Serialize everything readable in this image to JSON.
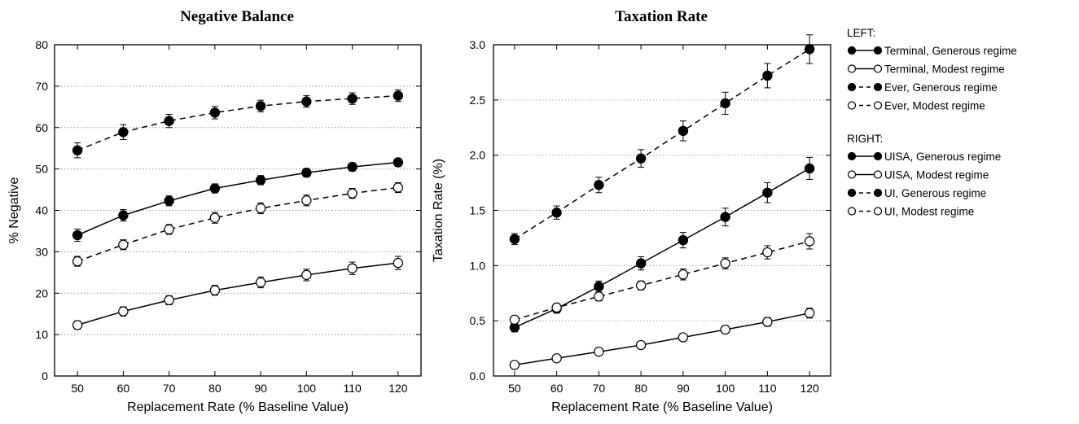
{
  "chart_data": [
    {
      "type": "line",
      "title": "Negative Balance",
      "xlabel": "Replacement Rate (% Baseline Value)",
      "ylabel": "% Negative",
      "x": [
        50,
        60,
        70,
        80,
        90,
        100,
        110,
        120
      ],
      "xlim": [
        45,
        125
      ],
      "ylim": [
        0,
        80
      ],
      "yticks": [
        0,
        10,
        20,
        30,
        40,
        50,
        60,
        70,
        80
      ],
      "ytick_labels": [
        "0",
        "10",
        "20",
        "30",
        "40",
        "50",
        "60",
        "70",
        "80"
      ],
      "xtick_labels": [
        "50",
        "60",
        "70",
        "80",
        "90",
        "100",
        "110",
        "120"
      ],
      "grid": "horizontal dotted",
      "series": [
        {
          "name": "Terminal, Generous regime",
          "marker": "filled",
          "line": "solid",
          "values": [
            34.0,
            38.8,
            42.3,
            45.3,
            47.3,
            49.1,
            50.5,
            51.6
          ],
          "error": [
            1.5,
            1.4,
            1.2,
            1.1,
            1.1,
            1.0,
            1.0,
            1.0
          ]
        },
        {
          "name": "Terminal, Modest regime",
          "marker": "open",
          "line": "solid",
          "values": [
            12.3,
            15.6,
            18.3,
            20.7,
            22.6,
            24.4,
            26.0,
            27.3
          ],
          "error": [
            1.0,
            1.1,
            1.1,
            1.2,
            1.3,
            1.4,
            1.5,
            1.6
          ]
        },
        {
          "name": "Ever, Generous regime",
          "marker": "filled",
          "line": "dashed",
          "values": [
            54.5,
            58.9,
            61.6,
            63.6,
            65.2,
            66.3,
            67.0,
            67.7
          ],
          "error": [
            1.8,
            1.8,
            1.6,
            1.5,
            1.4,
            1.4,
            1.4,
            1.4
          ]
        },
        {
          "name": "Ever, Modest regime",
          "marker": "open",
          "line": "dashed",
          "values": [
            27.7,
            31.7,
            35.4,
            38.2,
            40.5,
            42.4,
            44.1,
            45.5
          ],
          "error": [
            1.2,
            1.2,
            1.2,
            1.3,
            1.3,
            1.3,
            1.2,
            1.2
          ]
        }
      ]
    },
    {
      "type": "line",
      "title": "Taxation Rate",
      "xlabel": "Replacement Rate (% Baseline Value)",
      "ylabel": "Taxation Rate (%)",
      "x": [
        50,
        60,
        70,
        80,
        90,
        100,
        110,
        120
      ],
      "xlim": [
        45,
        125
      ],
      "ylim": [
        0,
        3.0
      ],
      "yticks": [
        0.0,
        0.5,
        1.0,
        1.5,
        2.0,
        2.5,
        3.0
      ],
      "ytick_labels": [
        "0.0",
        "0.5",
        "1.0",
        "1.5",
        "2.0",
        "2.5",
        "3.0"
      ],
      "xtick_labels": [
        "50",
        "60",
        "70",
        "80",
        "90",
        "100",
        "110",
        "120"
      ],
      "grid": "horizontal dotted",
      "series": [
        {
          "name": "UISA, Generous regime",
          "marker": "filled",
          "line": "solid",
          "values": [
            0.44,
            0.61,
            0.81,
            1.02,
            1.23,
            1.44,
            1.66,
            1.88
          ],
          "error": [
            0.04,
            0.04,
            0.05,
            0.06,
            0.07,
            0.08,
            0.09,
            0.1
          ]
        },
        {
          "name": "UISA, Modest regime",
          "marker": "open",
          "line": "solid",
          "values": [
            0.1,
            0.16,
            0.22,
            0.28,
            0.35,
            0.42,
            0.49,
            0.57
          ],
          "error": [
            0.01,
            0.015,
            0.02,
            0.025,
            0.03,
            0.035,
            0.04,
            0.045
          ]
        },
        {
          "name": "UI, Generous regime",
          "marker": "filled",
          "line": "dashed",
          "values": [
            1.24,
            1.48,
            1.73,
            1.97,
            2.22,
            2.47,
            2.72,
            2.96
          ],
          "error": [
            0.05,
            0.06,
            0.07,
            0.08,
            0.09,
            0.1,
            0.11,
            0.13
          ]
        },
        {
          "name": "UI, Modest regime",
          "marker": "open",
          "line": "dashed",
          "values": [
            0.51,
            0.62,
            0.72,
            0.82,
            0.92,
            1.02,
            1.12,
            1.22
          ],
          "error": [
            0.03,
            0.03,
            0.04,
            0.04,
            0.05,
            0.05,
            0.06,
            0.07
          ]
        }
      ]
    }
  ],
  "legend": {
    "placement": "right",
    "groups": [
      {
        "header": "LEFT:",
        "entries": [
          {
            "label": "Terminal, Generous regime",
            "marker": "filled",
            "line": "solid"
          },
          {
            "label": "Terminal, Modest regime",
            "marker": "open",
            "line": "solid"
          },
          {
            "label": "Ever, Generous regime",
            "marker": "filled",
            "line": "dashed"
          },
          {
            "label": "Ever, Modest regime",
            "marker": "open",
            "line": "dashed"
          }
        ]
      },
      {
        "header": "RIGHT:",
        "entries": [
          {
            "label": "UISA, Generous regime",
            "marker": "filled",
            "line": "solid"
          },
          {
            "label": "UISA, Modest regime",
            "marker": "open",
            "line": "solid"
          },
          {
            "label": "UI, Generous regime",
            "marker": "filled",
            "line": "dashed"
          },
          {
            "label": "UI, Modest regime",
            "marker": "open",
            "line": "dashed"
          }
        ]
      }
    ]
  }
}
